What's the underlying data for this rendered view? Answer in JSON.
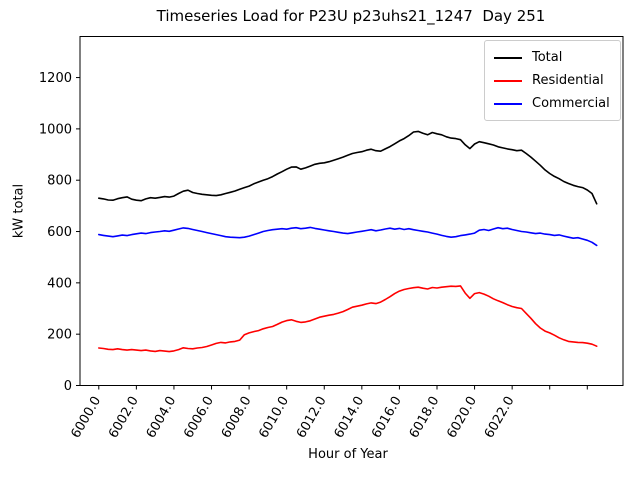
{
  "chart_data": {
    "type": "line",
    "title": "Timeseries Load for P23U p23uhs21_1247  Day 251",
    "xlabel": "Hour of Year",
    "ylabel": "kW total",
    "xlim": [
      5999.0,
      6027.9
    ],
    "ylim": [
      0,
      1360
    ],
    "grid": false,
    "legend_position": "upper right",
    "xtick_values": [
      6000,
      6002,
      6004,
      6006,
      6008,
      6010,
      6012,
      6014,
      6016,
      6018,
      6020,
      6022
    ],
    "xtick_labels": [
      "6000.0",
      "6002.0",
      "6004.0",
      "6006.0",
      "6008.0",
      "6010.0",
      "6012.0",
      "6014.0",
      "6016.0",
      "6018.0",
      "6020.0",
      "6022.0"
    ],
    "xticks_unlabeled": [
      6024,
      6026
    ],
    "ytick_values": [
      0,
      200,
      400,
      600,
      800,
      1000,
      1200
    ],
    "x_start": 6000.0,
    "x_step": 0.25,
    "series": [
      {
        "name": "Total",
        "color": "#000000",
        "values": [
          730,
          727,
          723,
          722,
          728,
          732,
          735,
          726,
          722,
          720,
          727,
          732,
          730,
          733,
          736,
          734,
          738,
          748,
          757,
          761,
          752,
          748,
          745,
          743,
          741,
          740,
          743,
          748,
          753,
          758,
          765,
          771,
          777,
          786,
          793,
          800,
          806,
          814,
          824,
          833,
          843,
          851,
          852,
          843,
          848,
          855,
          862,
          866,
          868,
          872,
          878,
          884,
          890,
          897,
          904,
          908,
          911,
          917,
          921,
          915,
          913,
          922,
          931,
          942,
          953,
          962,
          974,
          988,
          990,
          983,
          977,
          986,
          981,
          977,
          969,
          964,
          962,
          958,
          938,
          923,
          941,
          950,
          946,
          942,
          937,
          930,
          926,
          922,
          919,
          915,
          917,
          904,
          890,
          874,
          858,
          840,
          826,
          815,
          806,
          795,
          787,
          780,
          775,
          771,
          762,
          748,
          708
        ]
      },
      {
        "name": "Residential",
        "color": "#ff0000",
        "values": [
          146,
          144,
          141,
          140,
          143,
          140,
          138,
          140,
          138,
          136,
          138,
          135,
          133,
          136,
          134,
          132,
          135,
          140,
          147,
          144,
          143,
          146,
          148,
          152,
          158,
          164,
          168,
          166,
          170,
          172,
          177,
          198,
          205,
          210,
          214,
          221,
          226,
          230,
          238,
          247,
          253,
          256,
          250,
          246,
          248,
          252,
          259,
          266,
          270,
          274,
          277,
          282,
          288,
          296,
          305,
          309,
          313,
          318,
          322,
          319,
          325,
          335,
          346,
          358,
          368,
          374,
          378,
          381,
          383,
          379,
          376,
          382,
          380,
          383,
          385,
          387,
          386,
          388,
          360,
          340,
          358,
          362,
          356,
          348,
          338,
          330,
          323,
          315,
          308,
          303,
          300,
          281,
          262,
          241,
          224,
          212,
          205,
          196,
          186,
          178,
          172,
          170,
          168,
          167,
          165,
          161,
          153
        ]
      },
      {
        "name": "Commercial",
        "color": "#0000ff",
        "values": [
          588,
          585,
          582,
          580,
          583,
          586,
          584,
          588,
          591,
          594,
          592,
          596,
          598,
          600,
          603,
          601,
          605,
          610,
          614,
          612,
          608,
          604,
          600,
          596,
          592,
          588,
          584,
          580,
          578,
          577,
          576,
          578,
          582,
          588,
          594,
          600,
          604,
          607,
          609,
          611,
          609,
          613,
          615,
          611,
          613,
          616,
          612,
          609,
          606,
          603,
          600,
          597,
          594,
          592,
          595,
          598,
          601,
          604,
          607,
          603,
          606,
          610,
          613,
          609,
          612,
          608,
          611,
          607,
          604,
          601,
          598,
          594,
          590,
          585,
          581,
          578,
          580,
          584,
          587,
          590,
          594,
          605,
          608,
          604,
          610,
          615,
          611,
          613,
          608,
          604,
          600,
          598,
          595,
          592,
          594,
          590,
          588,
          585,
          587,
          582,
          578,
          574,
          576,
          571,
          566,
          558,
          546
        ]
      }
    ]
  }
}
